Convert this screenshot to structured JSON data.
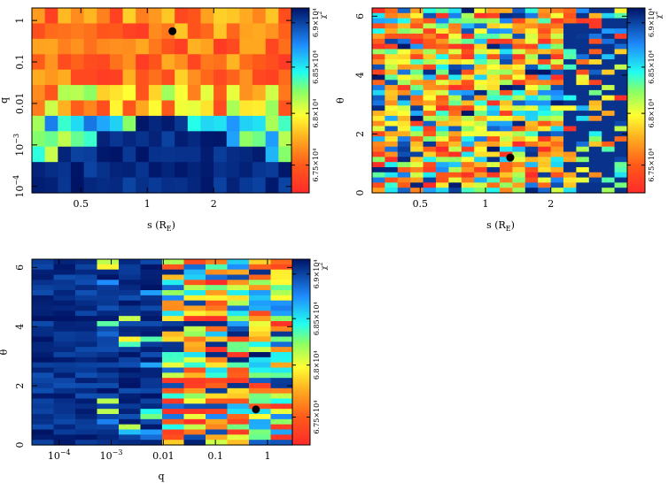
{
  "figure": {
    "description_free": true
  },
  "chart_data": [
    {
      "type": "heatmap",
      "id": "s-q",
      "xlabel_main": "s (R",
      "xlabel_sub": "E",
      "xlabel_close": ")",
      "ylabel": "q",
      "x_scale": "log",
      "y_scale": "log",
      "xlim": [
        0.3,
        4.5
      ],
      "ylim": [
        7e-05,
        2
      ],
      "x_ticks": [
        {
          "v": 0.5,
          "label": "0.5"
        },
        {
          "v": 1,
          "label": "1"
        },
        {
          "v": 2,
          "label": "2"
        }
      ],
      "y_ticks": [
        {
          "v": 0.0001,
          "base": "10",
          "exp": "−4"
        },
        {
          "v": 0.001,
          "base": "10",
          "exp": "−3"
        },
        {
          "v": 0.01,
          "label": "0.01"
        },
        {
          "v": 0.1,
          "label": "0.1"
        },
        {
          "v": 1,
          "label": "1"
        }
      ],
      "best_fit_point": {
        "x": 1.3,
        "y": 0.55
      },
      "grid_cols": 20,
      "grid_rows": 12,
      "colorbar": {
        "title": "χ",
        "title_sup": "2",
        "ticks": [
          "6.75×10⁴",
          "6.8×10⁴",
          "6.85×10⁴",
          "6.9×10⁴"
        ]
      }
    },
    {
      "type": "heatmap",
      "id": "s-theta",
      "xlabel_main": "s (R",
      "xlabel_sub": "E",
      "xlabel_close": ")",
      "ylabel": "θ",
      "x_scale": "log",
      "y_scale": "linear",
      "xlim": [
        0.3,
        4.5
      ],
      "ylim": [
        0,
        6.28
      ],
      "x_ticks": [
        {
          "v": 0.5,
          "label": "0.5"
        },
        {
          "v": 1,
          "label": "1"
        },
        {
          "v": 2,
          "label": "2"
        }
      ],
      "y_ticks": [
        {
          "v": 0,
          "label": "0"
        },
        {
          "v": 2,
          "label": "2"
        },
        {
          "v": 4,
          "label": "4"
        },
        {
          "v": 6,
          "label": "6"
        }
      ],
      "best_fit_point": {
        "x": 1.3,
        "y": 1.2
      },
      "grid_cols": 20,
      "grid_rows": 36,
      "colorbar": {
        "title": "χ",
        "title_sup": "2",
        "ticks": [
          "6.75×10⁴",
          "6.8×10⁴",
          "6.85×10⁴",
          "6.9×10⁴"
        ]
      }
    },
    {
      "type": "heatmap",
      "id": "q-theta",
      "xlabel_main": "q",
      "xlabel_sub": "",
      "xlabel_close": "",
      "ylabel": "θ",
      "x_scale": "log",
      "y_scale": "linear",
      "xlim": [
        3e-05,
        3
      ],
      "ylim": [
        0,
        6.28
      ],
      "x_ticks": [
        {
          "v": 0.0001,
          "base": "10",
          "exp": "−4"
        },
        {
          "v": 0.001,
          "base": "10",
          "exp": "−3"
        },
        {
          "v": 0.01,
          "label": "0.01"
        },
        {
          "v": 0.1,
          "label": "0.1"
        },
        {
          "v": 1,
          "label": "1"
        }
      ],
      "y_ticks": [
        {
          "v": 0,
          "label": "0"
        },
        {
          "v": 2,
          "label": "2"
        },
        {
          "v": 4,
          "label": "4"
        },
        {
          "v": 6,
          "label": "6"
        }
      ],
      "best_fit_point": {
        "x": 0.6,
        "y": 1.2
      },
      "grid_cols": 12,
      "grid_rows": 36,
      "colorbar": {
        "title": "χ",
        "title_sup": "2",
        "ticks": [
          "6.75×10⁴",
          "6.8×10⁴",
          "6.85×10⁴",
          "6.9×10⁴"
        ]
      }
    }
  ]
}
